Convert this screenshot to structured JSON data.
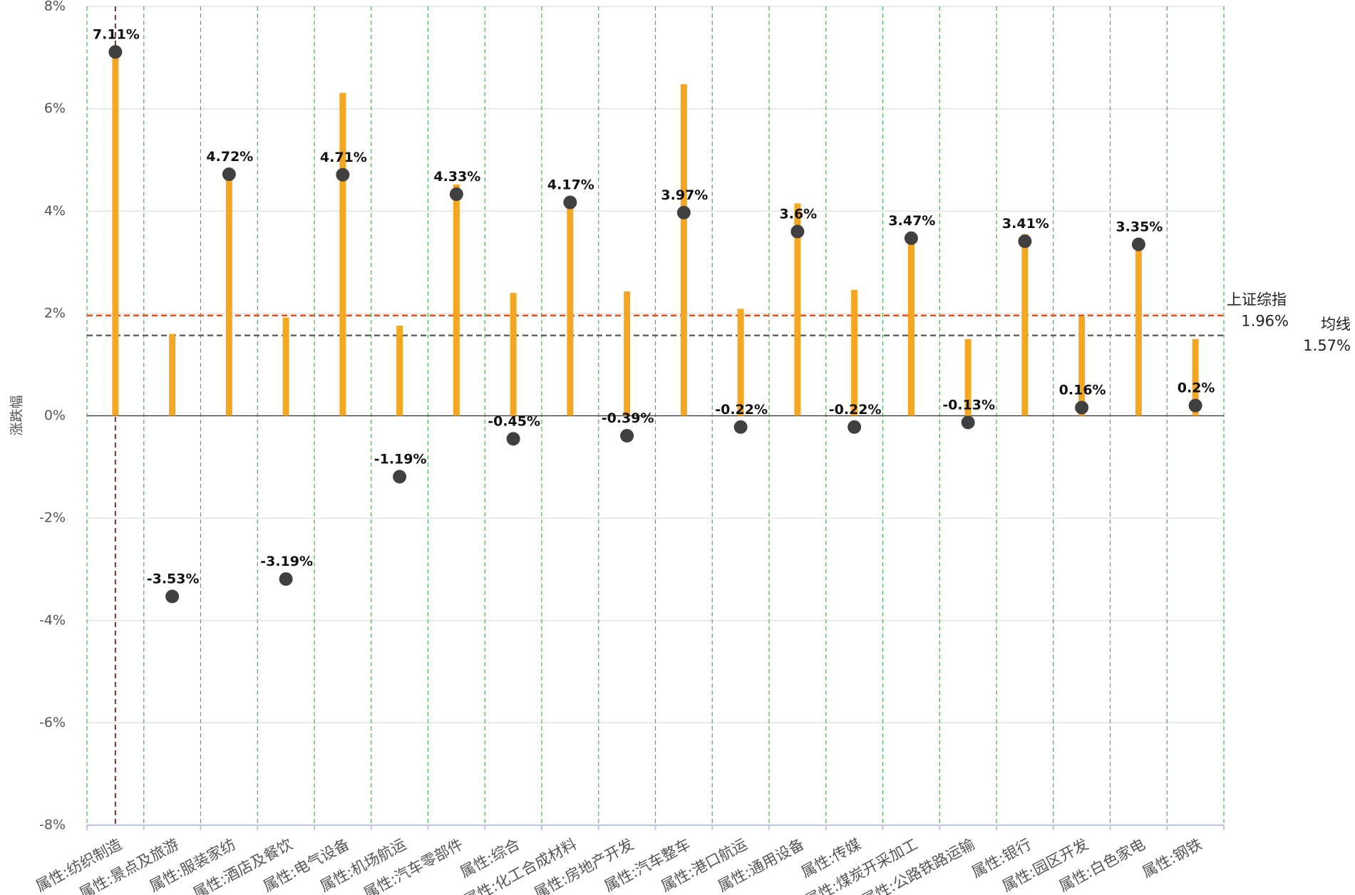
{
  "chart_data": {
    "type": "lollipop-bar",
    "y_label": "涨跌幅",
    "categories": [
      "属性:纺织制造",
      "属性:景点及旅游",
      "属性:服装家纺",
      "属性:酒店及餐饮",
      "属性:电气设备",
      "属性:机场航运",
      "属性:汽车零部件",
      "属性:综合",
      "属性:化工合成材料",
      "属性:房地产开发",
      "属性:汽车整车",
      "属性:港口航运",
      "属性:通用设备",
      "属性:传媒",
      "属性:煤炭开采加工",
      "属性:公路铁路运输",
      "属性:银行",
      "属性:园区开发",
      "属性:白色家电",
      "属性:钢铁"
    ],
    "series": [
      {
        "kind": "bar",
        "color": "#f5a623",
        "values": [
          7.1,
          1.6,
          4.7,
          1.92,
          6.31,
          1.76,
          4.52,
          2.4,
          4.27,
          2.43,
          6.48,
          2.09,
          4.15,
          2.46,
          3.6,
          1.5,
          3.55,
          1.94,
          3.4,
          1.5
        ]
      },
      {
        "kind": "dot",
        "color": "#404040",
        "values": [
          7.11,
          -3.53,
          4.72,
          -3.19,
          4.71,
          -1.19,
          4.33,
          -0.45,
          4.17,
          -0.39,
          3.97,
          -0.22,
          3.6,
          -0.22,
          3.47,
          -0.13,
          3.41,
          0.16,
          3.35,
          0.2
        ],
        "value_labels": [
          "7.11%",
          "-3.53%",
          "4.72%",
          "-3.19%",
          "4.71%",
          "-1.19%",
          "4.33%",
          "-0.45%",
          "4.17%",
          "-0.39%",
          "3.97%",
          "-0.22%",
          "3.6%",
          "-0.22%",
          "3.47%",
          "-0.13%",
          "3.41%",
          "0.16%",
          "3.35%",
          "0.2%"
        ]
      }
    ],
    "reference_lines": [
      {
        "name": "上证综指",
        "value": 1.96,
        "value_label": "1.96%",
        "color": "#e0521a"
      },
      {
        "name": "均线",
        "value": 1.57,
        "value_label": "1.57%",
        "color": "#666666"
      }
    ],
    "ylim": [
      -8,
      8
    ],
    "yticks": [
      {
        "value": -8,
        "label": "-8%"
      },
      {
        "value": -6,
        "label": "-6%"
      },
      {
        "value": -4,
        "label": "-4%"
      },
      {
        "value": -2,
        "label": "-2%"
      },
      {
        "value": 0,
        "label": "0%"
      },
      {
        "value": 2,
        "label": "2%"
      },
      {
        "value": 4,
        "label": "4%"
      },
      {
        "value": 6,
        "label": "6%"
      },
      {
        "value": 8,
        "label": "8%"
      }
    ],
    "grid": true
  }
}
